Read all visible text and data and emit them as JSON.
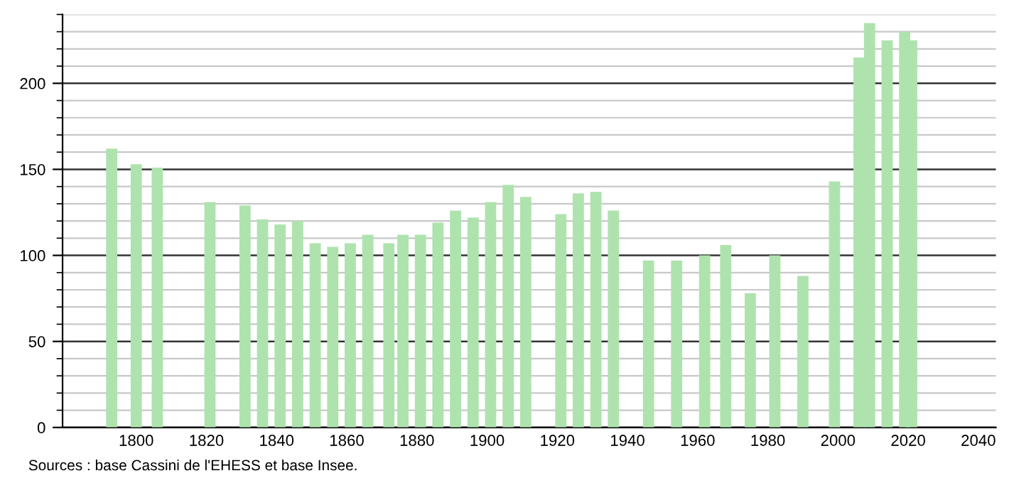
{
  "chart_data": {
    "type": "bar",
    "color": "#aee3ae",
    "x": [
      1793,
      1800,
      1806,
      1821,
      1831,
      1836,
      1841,
      1846,
      1851,
      1856,
      1861,
      1866,
      1872,
      1876,
      1881,
      1886,
      1891,
      1896,
      1901,
      1906,
      1911,
      1921,
      1926,
      1931,
      1936,
      1946,
      1954,
      1962,
      1968,
      1975,
      1982,
      1990,
      1999,
      2006,
      2009,
      2014,
      2019,
      2021
    ],
    "values": [
      162,
      153,
      151,
      131,
      129,
      121,
      118,
      120,
      107,
      105,
      107,
      112,
      107,
      112,
      112,
      119,
      126,
      122,
      131,
      141,
      134,
      124,
      136,
      137,
      126,
      97,
      97,
      100,
      106,
      78,
      100,
      88,
      143,
      215,
      235,
      225,
      230,
      225
    ],
    "xlim": [
      1779,
      2045
    ],
    "xticks": [
      1800,
      1820,
      1840,
      1860,
      1880,
      1900,
      1920,
      1940,
      1960,
      1980,
      2000,
      2020,
      2040
    ],
    "ylim": [
      0,
      240
    ],
    "yticks": [
      0,
      50,
      100,
      150,
      200
    ],
    "grid": "y",
    "annotations": [
      "Sources : base Cassini de l'EHESS et base Insee."
    ]
  }
}
